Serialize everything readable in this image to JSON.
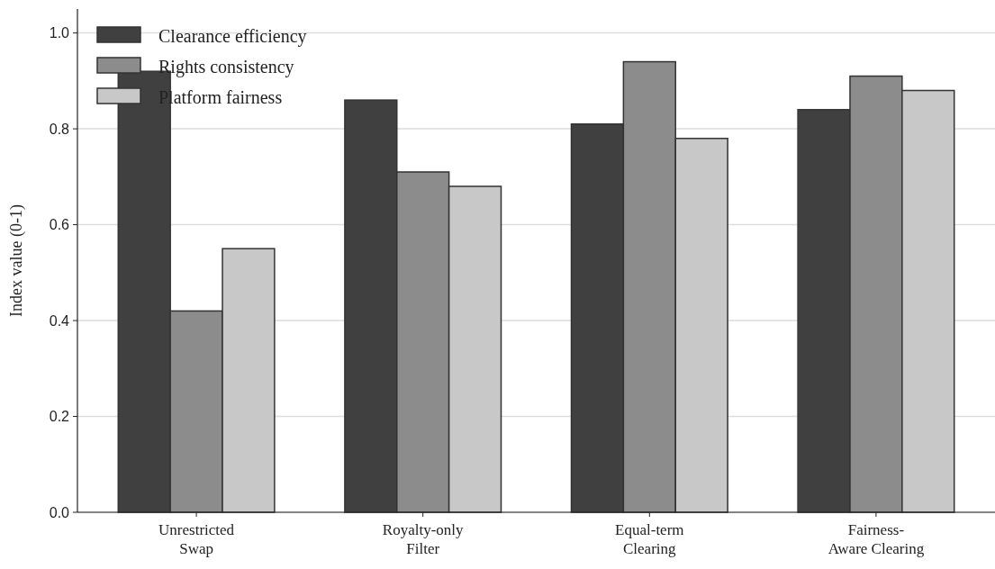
{
  "chart_data": {
    "type": "bar",
    "ylabel": "Index value (0-1)",
    "categories": [
      "Unrestricted\nSwap",
      "Royalty-only\nFilter",
      "Equal-term\nClearing",
      "Fairness-\nAware Clearing"
    ],
    "series": [
      {
        "name": "Clearance efficiency",
        "color": "#404040",
        "values": [
          0.92,
          0.86,
          0.81,
          0.84
        ]
      },
      {
        "name": "Rights consistency",
        "color": "#8c8c8c",
        "values": [
          0.42,
          0.71,
          0.94,
          0.91
        ]
      },
      {
        "name": "Platform fairness",
        "color": "#c8c8c8",
        "values": [
          0.55,
          0.68,
          0.78,
          0.88
        ]
      }
    ],
    "ylim": [
      0,
      1.05
    ],
    "yticks": [
      {
        "value": 0,
        "label": "0.0"
      },
      {
        "value": 0.2,
        "label": "0.2"
      },
      {
        "value": 0.4,
        "label": "0.4"
      },
      {
        "value": 0.6,
        "label": "0.6"
      },
      {
        "value": 0.8,
        "label": "0.8"
      },
      {
        "value": 1,
        "label": "1.0"
      }
    ],
    "grid": "y",
    "legend": "top left"
  }
}
